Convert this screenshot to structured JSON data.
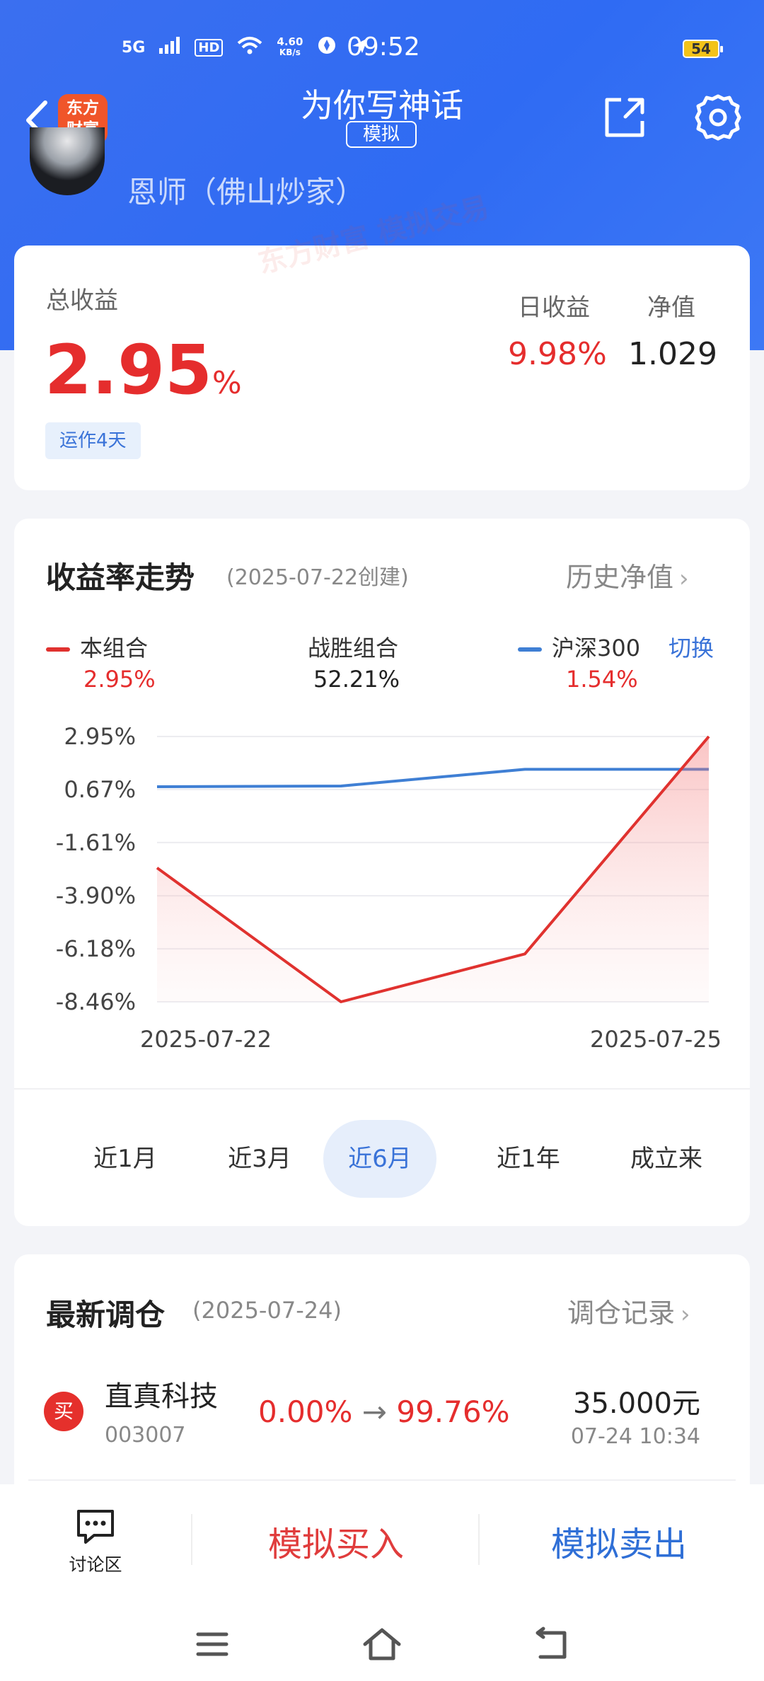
{
  "status_bar": {
    "network": "5G",
    "hd": "HD",
    "wifi_icon": "wifi-icon",
    "speed_value": "4.60",
    "speed_unit": "KB/s",
    "time": "09:52",
    "battery": "54"
  },
  "nav": {
    "title": "为你写神话",
    "badge": "模拟",
    "logo_line1": "东方",
    "logo_line2": "财富",
    "icons": [
      "chevron-left-icon",
      "share-icon",
      "gear-icon"
    ]
  },
  "user": {
    "name": "恩师（佛山炒家）"
  },
  "summary": {
    "total_label": "总收益",
    "total_value": "2.95",
    "total_unit": "%",
    "run_days": "运作4天",
    "daily_label": "日收益",
    "daily_value": "9.98%",
    "nav_label": "净值",
    "nav_value": "1.029"
  },
  "trend": {
    "title": "收益率走势",
    "subtitle": "(2025-07-22创建)",
    "link": "历史净值",
    "switch": "切换",
    "legend": [
      {
        "name": "本组合",
        "value": "2.95%",
        "color": "#e0322f"
      },
      {
        "name": "战胜组合",
        "value": "52.21%",
        "color": ""
      },
      {
        "name": "沪深300",
        "value": "1.54%",
        "color": "#3f7fd4"
      }
    ],
    "ranges": [
      "近1月",
      "近3月",
      "近6月",
      "近1年",
      "成立来"
    ],
    "active_range": "近6月"
  },
  "chart_data": {
    "type": "line",
    "y_ticks": [
      "2.95%",
      "0.67%",
      "-1.61%",
      "-3.90%",
      "-6.18%",
      "-8.46%"
    ],
    "y_tick_values": [
      2.95,
      0.67,
      -1.61,
      -3.9,
      -6.18,
      -8.46
    ],
    "ylim": [
      -8.46,
      2.95
    ],
    "x_ticks": [
      "2025-07-22",
      "2025-07-25"
    ],
    "x": [
      "2025-07-22",
      "2025-07-23",
      "2025-07-24",
      "2025-07-25"
    ],
    "grid": true,
    "series": [
      {
        "name": "本组合",
        "color": "#e0322f",
        "values": [
          -2.7,
          -8.46,
          -6.4,
          2.95
        ],
        "fill": true
      },
      {
        "name": "沪深300",
        "color": "#3f7fd4",
        "values": [
          0.79,
          0.82,
          1.54,
          1.54
        ]
      }
    ]
  },
  "rebalance": {
    "title": "最新调仓",
    "date": "(2025-07-24)",
    "link": "调仓记录",
    "trades": [
      {
        "action": "买",
        "name": "直真科技",
        "code": "003007",
        "from": "0.00%",
        "arrow": "→",
        "to": "99.76%",
        "amount": "35.000元",
        "time": "07-24  10:34"
      }
    ]
  },
  "bottom": {
    "discuss": "讨论区",
    "buy": "模拟买入",
    "sell": "模拟卖出"
  },
  "watermark": {
    "brand": "东方财富",
    "mode": "模拟交易"
  }
}
